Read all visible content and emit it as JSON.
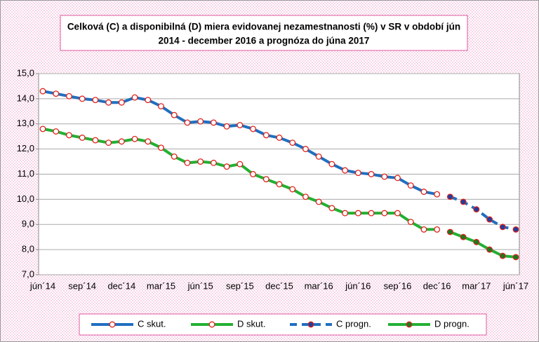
{
  "chart_data": {
    "type": "line",
    "title": [
      "Celková (C) a disponibilná (D) miera evidovanej nezamestnanosti (%) v SR v období jún",
      "2014 - december 2016 a prognóza do júna 2017"
    ],
    "categories": [
      "jún´14",
      null,
      null,
      "sep´14",
      null,
      null,
      "dec´14",
      null,
      null,
      "mar´15",
      null,
      null,
      "jún´15",
      null,
      null,
      "sep´15",
      null,
      null,
      "dec´15",
      null,
      null,
      "mar´16",
      null,
      null,
      "jún´16",
      null,
      null,
      "sep´16",
      null,
      null,
      "dec´16",
      null,
      null,
      "mar´17",
      null,
      null,
      "jún´17"
    ],
    "series": [
      {
        "name": "C skut.",
        "color": "#1f6fc0",
        "dashed": false,
        "marker_fill": "#ffffff",
        "values": [
          14.3,
          14.2,
          14.1,
          14.0,
          13.95,
          13.85,
          13.85,
          14.05,
          13.95,
          13.7,
          13.35,
          13.05,
          13.1,
          13.05,
          12.9,
          12.95,
          12.8,
          12.55,
          12.45,
          12.25,
          12.0,
          11.7,
          11.4,
          11.15,
          11.05,
          11.0,
          10.9,
          10.85,
          10.55,
          10.3,
          10.2,
          null,
          null,
          null,
          null,
          null,
          null
        ]
      },
      {
        "name": "D skut.",
        "color": "#22b033",
        "dashed": false,
        "marker_fill": "#ffffff",
        "values": [
          12.8,
          12.7,
          12.55,
          12.45,
          12.35,
          12.25,
          12.3,
          12.4,
          12.3,
          12.05,
          11.7,
          11.45,
          11.5,
          11.45,
          11.3,
          11.4,
          11.0,
          10.8,
          10.6,
          10.4,
          10.1,
          9.9,
          9.65,
          9.45,
          9.45,
          9.45,
          9.45,
          9.45,
          9.1,
          8.8,
          8.8,
          null,
          null,
          null,
          null,
          null,
          null
        ]
      },
      {
        "name": "C progn.",
        "color": "#1f6fc0",
        "dashed": true,
        "marker_fill": "#1f3f9f",
        "values": [
          null,
          null,
          null,
          null,
          null,
          null,
          null,
          null,
          null,
          null,
          null,
          null,
          null,
          null,
          null,
          null,
          null,
          null,
          null,
          null,
          null,
          null,
          null,
          null,
          null,
          null,
          null,
          null,
          null,
          null,
          null,
          10.1,
          9.9,
          9.6,
          9.2,
          8.9,
          8.8
        ]
      },
      {
        "name": "D progn.",
        "color": "#22b033",
        "dashed": false,
        "marker_fill": "#1a7a20",
        "values": [
          null,
          null,
          null,
          null,
          null,
          null,
          null,
          null,
          null,
          null,
          null,
          null,
          null,
          null,
          null,
          null,
          null,
          null,
          null,
          null,
          null,
          null,
          null,
          null,
          null,
          null,
          null,
          null,
          null,
          null,
          null,
          8.7,
          8.5,
          8.3,
          8.0,
          7.75,
          7.7
        ]
      }
    ],
    "marker_edge_color": "#e0201a",
    "ylim": [
      7,
      15
    ],
    "yticks": [
      {
        "value": 7,
        "label": "7,0"
      },
      {
        "value": 8,
        "label": "8,0"
      },
      {
        "value": 9,
        "label": "9,0"
      },
      {
        "value": 10,
        "label": "10,0"
      },
      {
        "value": 11,
        "label": "11,0"
      },
      {
        "value": 12,
        "label": "12,0"
      },
      {
        "value": 13,
        "label": "13,0"
      },
      {
        "value": 14,
        "label": "14,0"
      },
      {
        "value": 15,
        "label": "15,0"
      }
    ],
    "grid": true,
    "legend": "bottom"
  }
}
